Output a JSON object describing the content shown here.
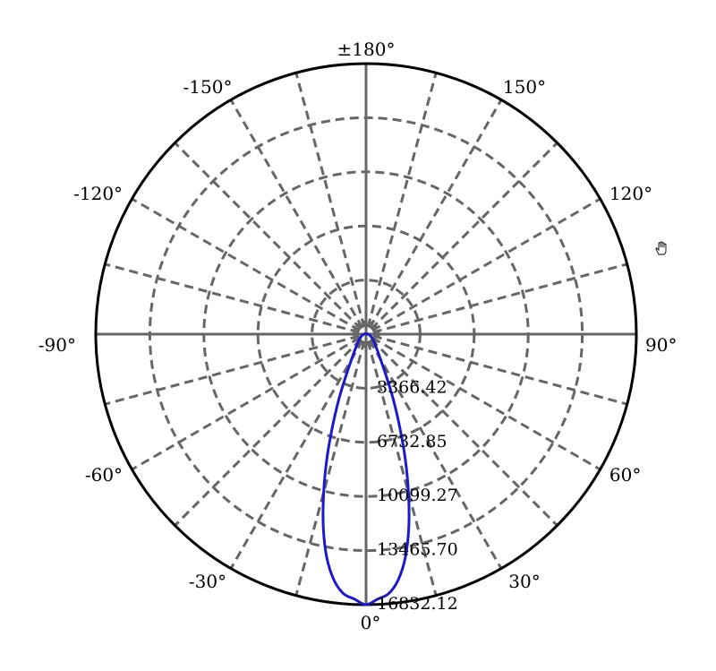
{
  "chart_data": {
    "type": "polar-line",
    "angle_labels": [
      {
        "text": "±180°",
        "angle": 180
      },
      {
        "text": "150°",
        "angle": 150
      },
      {
        "text": "120°",
        "angle": 120
      },
      {
        "text": "90°",
        "angle": 90
      },
      {
        "text": "60°",
        "angle": 60
      },
      {
        "text": "30°",
        "angle": 30
      },
      {
        "text": "0°",
        "angle": 0
      },
      {
        "text": "-30°",
        "angle": -30
      },
      {
        "text": "-60°",
        "angle": -60
      },
      {
        "text": "-90°",
        "angle": -90
      },
      {
        "text": "-120°",
        "angle": -120
      },
      {
        "text": "-150°",
        "angle": -150
      }
    ],
    "radial_ticks": [
      "3366.42",
      "6732.85",
      "10099.27",
      "13465.70",
      "16832.12"
    ],
    "radial_values": [
      3366.42,
      6732.85,
      10099.27,
      13465.7,
      16832.12
    ],
    "radial_max": 16832.12,
    "spoke_step_deg": 15,
    "grid": true,
    "series": [
      {
        "color": "#1a1acc",
        "points": [
          [
            0,
            16832.12
          ],
          [
            2.5,
            16500
          ],
          [
            5,
            16200
          ],
          [
            7.5,
            15400
          ],
          [
            10,
            14100
          ],
          [
            12.5,
            12300
          ],
          [
            15,
            10200
          ],
          [
            17.5,
            8100
          ],
          [
            20,
            6100
          ],
          [
            22.5,
            4500
          ],
          [
            25,
            3200
          ],
          [
            30,
            1800
          ],
          [
            40,
            900
          ],
          [
            60,
            400
          ],
          [
            90,
            150
          ],
          [
            120,
            40
          ],
          [
            150,
            10
          ],
          [
            180,
            0
          ]
        ],
        "symmetric": true
      }
    ],
    "colors": {
      "series": "#1a1acc",
      "grid": "#666666",
      "outer": "#000000"
    }
  },
  "cursor": {
    "icon": "hand-cursor-icon"
  }
}
